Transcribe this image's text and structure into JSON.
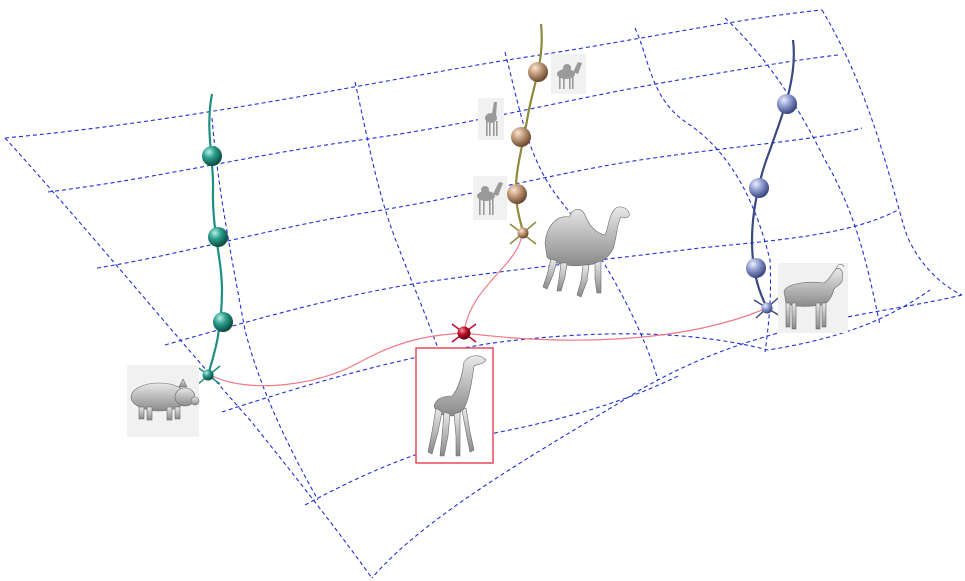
{
  "diagram": {
    "title": "",
    "manifold": {
      "line_color": "#1f2fd8",
      "line_style": "dashed"
    },
    "paths": [
      {
        "name": "pig-path",
        "color": "#1e8f80",
        "sphere_color": "#2a9c8a",
        "samples": 3,
        "endpoint": "pig"
      },
      {
        "name": "camel-path",
        "color": "#8f8a3a",
        "sphere_color": "#c29b7a",
        "samples": 3,
        "endpoint": "camel"
      },
      {
        "name": "goat-path",
        "color": "#3a4a80",
        "sphere_color": "#8f9dcf",
        "samples": 3,
        "endpoint": "goat"
      }
    ],
    "interpolation": {
      "color": "#f07a86",
      "target_color": "#c0142a",
      "target": "giraffe",
      "highlight_box_color": "#e84a5a"
    },
    "shapes": [
      {
        "name": "pig",
        "icon": "pig-icon"
      },
      {
        "name": "camel",
        "icon": "camel-icon"
      },
      {
        "name": "goat",
        "icon": "goat-icon"
      },
      {
        "name": "giraffe",
        "icon": "giraffe-icon"
      }
    ]
  }
}
